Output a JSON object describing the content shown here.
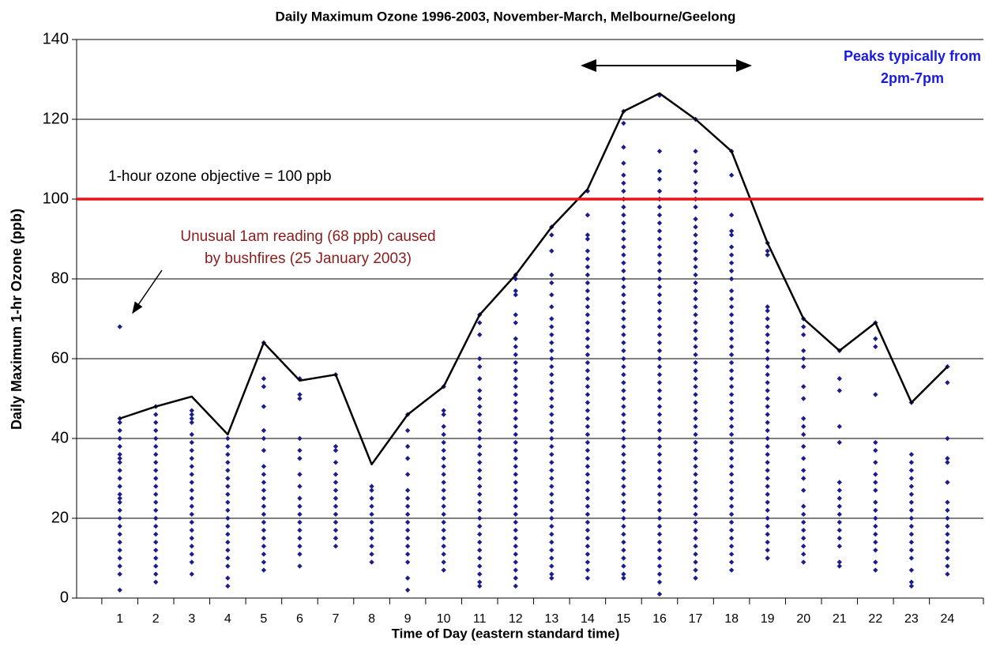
{
  "chart_data": {
    "type": "scatter",
    "title": "Daily Maximum Ozone 1996-2003, November-March, Melbourne/Geelong",
    "x_label": "Time of Day (eastern standard time)",
    "y_label": "Daily Maximum 1-hr Ozone (ppb)",
    "xlim": [
      -0.2,
      25
    ],
    "ylim": [
      0,
      140
    ],
    "xticks": [
      1,
      2,
      3,
      4,
      5,
      6,
      7,
      8,
      9,
      10,
      11,
      12,
      13,
      14,
      15,
      16,
      17,
      18,
      19,
      20,
      21,
      22,
      23,
      24
    ],
    "yticks": [
      0,
      20,
      40,
      60,
      80,
      100,
      120,
      140
    ],
    "grid": true,
    "point_color": "#1c1c8e",
    "points": [
      {
        "x": 1,
        "values": [
          68,
          45,
          44,
          42,
          40,
          38,
          36,
          35,
          34,
          32,
          30,
          28,
          26,
          25,
          24,
          22,
          20,
          18,
          16,
          14,
          12,
          10,
          8,
          6,
          2
        ]
      },
      {
        "x": 2,
        "values": [
          48,
          46,
          44,
          42,
          40,
          38,
          36,
          34,
          32,
          30,
          28,
          26,
          24,
          22,
          20,
          18,
          16,
          14,
          12,
          10,
          8,
          6,
          4
        ]
      },
      {
        "x": 3,
        "values": [
          47,
          46,
          45,
          44,
          41,
          39,
          37,
          35,
          33,
          31,
          29,
          27,
          25,
          23,
          21,
          19,
          17,
          15,
          13,
          11,
          9,
          6
        ]
      },
      {
        "x": 4,
        "values": [
          40,
          38,
          36,
          34,
          32,
          30,
          28,
          26,
          24,
          22,
          20,
          18,
          16,
          14,
          12,
          10,
          8,
          5,
          3
        ]
      },
      {
        "x": 5,
        "values": [
          64,
          55,
          53,
          48,
          42,
          40,
          37,
          33,
          31,
          29,
          27,
          25,
          23,
          21,
          19,
          17,
          15,
          13,
          11,
          9,
          7
        ]
      },
      {
        "x": 6,
        "values": [
          55,
          51,
          50,
          40,
          37,
          35,
          31,
          28,
          25,
          23,
          21,
          19,
          17,
          15,
          13,
          11,
          8
        ]
      },
      {
        "x": 7,
        "values": [
          56,
          38,
          37,
          34,
          31,
          29,
          27,
          25,
          23,
          21,
          19,
          17,
          15,
          13
        ]
      },
      {
        "x": 8,
        "values": [
          28,
          27,
          25,
          23,
          21,
          19,
          17,
          15,
          13,
          11,
          9
        ]
      },
      {
        "x": 9,
        "values": [
          46,
          42,
          38,
          35,
          31,
          27,
          25,
          23,
          21,
          19,
          17,
          15,
          13,
          11,
          9,
          5,
          2
        ]
      },
      {
        "x": 10,
        "values": [
          53,
          47,
          46,
          43,
          41,
          39,
          37,
          35,
          33,
          31,
          29,
          27,
          25,
          23,
          21,
          19,
          17,
          15,
          13,
          11,
          9,
          7
        ]
      },
      {
        "x": 11,
        "values": [
          71,
          69,
          66,
          60,
          58,
          55,
          52,
          50,
          48,
          46,
          44,
          42,
          40,
          38,
          36,
          34,
          32,
          30,
          28,
          26,
          24,
          22,
          20,
          18,
          16,
          14,
          12,
          10,
          8,
          6,
          4,
          3
        ]
      },
      {
        "x": 12,
        "values": [
          81,
          80,
          77,
          76,
          71,
          69,
          65,
          63,
          61,
          59,
          57,
          55,
          53,
          51,
          49,
          47,
          45,
          43,
          41,
          39,
          37,
          35,
          33,
          31,
          29,
          27,
          25,
          23,
          21,
          19,
          17,
          15,
          13,
          11,
          9,
          7,
          5,
          3
        ]
      },
      {
        "x": 13,
        "values": [
          93,
          91,
          87,
          81,
          79,
          76,
          73,
          70,
          68,
          66,
          64,
          62,
          60,
          58,
          56,
          54,
          52,
          50,
          48,
          46,
          44,
          42,
          40,
          38,
          36,
          34,
          32,
          30,
          28,
          26,
          24,
          22,
          20,
          18,
          16,
          14,
          12,
          10,
          8,
          6,
          5
        ]
      },
      {
        "x": 14,
        "values": [
          102,
          96,
          91,
          90,
          87,
          85,
          83,
          81,
          79,
          77,
          75,
          73,
          71,
          69,
          67,
          65,
          63,
          61,
          59,
          57,
          55,
          53,
          51,
          49,
          47,
          45,
          43,
          41,
          39,
          37,
          35,
          33,
          31,
          29,
          27,
          25,
          23,
          21,
          19,
          17,
          15,
          13,
          11,
          9,
          7,
          5
        ]
      },
      {
        "x": 15,
        "values": [
          122,
          119,
          113,
          109,
          106,
          104,
          102,
          100,
          98,
          96,
          94,
          92,
          90,
          88,
          86,
          84,
          82,
          80,
          78,
          76,
          74,
          72,
          70,
          68,
          66,
          64,
          62,
          60,
          58,
          56,
          54,
          52,
          50,
          48,
          46,
          44,
          42,
          40,
          38,
          36,
          34,
          32,
          30,
          28,
          26,
          24,
          22,
          20,
          18,
          16,
          14,
          12,
          10,
          8,
          6,
          5
        ]
      },
      {
        "x": 16,
        "values": [
          126,
          112,
          107,
          105,
          102,
          100,
          98,
          96,
          94,
          92,
          90,
          88,
          86,
          84,
          82,
          80,
          78,
          76,
          74,
          72,
          70,
          68,
          66,
          64,
          62,
          60,
          58,
          56,
          54,
          52,
          50,
          48,
          46,
          44,
          42,
          40,
          38,
          36,
          34,
          32,
          30,
          28,
          26,
          24,
          22,
          20,
          18,
          16,
          14,
          12,
          10,
          8,
          6,
          4,
          1
        ]
      },
      {
        "x": 17,
        "values": [
          120,
          112,
          109,
          107,
          104,
          102,
          100,
          98,
          95,
          93,
          91,
          89,
          87,
          85,
          83,
          81,
          79,
          77,
          75,
          73,
          71,
          69,
          67,
          65,
          63,
          61,
          59,
          57,
          55,
          53,
          51,
          49,
          47,
          45,
          43,
          41,
          39,
          37,
          35,
          33,
          31,
          29,
          27,
          25,
          23,
          21,
          19,
          17,
          15,
          13,
          11,
          9,
          7,
          5
        ]
      },
      {
        "x": 18,
        "values": [
          112,
          106,
          96,
          92,
          91,
          88,
          86,
          84,
          82,
          80,
          77,
          75,
          73,
          71,
          69,
          67,
          65,
          63,
          61,
          59,
          57,
          55,
          53,
          51,
          49,
          47,
          45,
          43,
          41,
          39,
          37,
          35,
          33,
          31,
          29,
          27,
          25,
          23,
          21,
          19,
          17,
          15,
          13,
          11,
          9,
          7
        ]
      },
      {
        "x": 19,
        "values": [
          89,
          87,
          86,
          73,
          72,
          70,
          68,
          66,
          64,
          62,
          60,
          58,
          56,
          54,
          52,
          50,
          48,
          46,
          44,
          42,
          40,
          38,
          36,
          34,
          32,
          30,
          28,
          26,
          24,
          22,
          20,
          18,
          16,
          14,
          12,
          10
        ]
      },
      {
        "x": 20,
        "values": [
          70,
          68,
          66,
          62,
          60,
          58,
          53,
          50,
          45,
          43,
          41,
          38,
          35,
          32,
          30,
          27,
          23,
          21,
          19,
          17,
          15,
          13,
          11,
          9
        ]
      },
      {
        "x": 21,
        "values": [
          62,
          55,
          52,
          43,
          39,
          29,
          27,
          25,
          23,
          21,
          19,
          17,
          15,
          13,
          9,
          8
        ]
      },
      {
        "x": 22,
        "values": [
          69,
          65,
          63,
          51,
          39,
          37,
          34,
          31,
          29,
          27,
          24,
          22,
          20,
          18,
          16,
          14,
          12,
          9,
          7
        ]
      },
      {
        "x": 23,
        "values": [
          49,
          36,
          34,
          32,
          30,
          28,
          26,
          24,
          22,
          20,
          18,
          16,
          14,
          12,
          10,
          7,
          4,
          3
        ]
      },
      {
        "x": 24,
        "values": [
          58,
          54,
          40,
          35,
          34,
          29,
          24,
          22,
          20,
          18,
          16,
          14,
          12,
          10,
          8,
          6
        ]
      }
    ],
    "max_line": {
      "color": "#000000",
      "values": [
        45,
        48,
        50.5,
        41,
        64,
        54.5,
        56,
        33.5,
        46,
        53,
        71,
        81,
        93,
        102.5,
        122,
        126.5,
        120,
        112,
        89,
        70,
        62,
        69,
        49,
        58
      ]
    },
    "reference_line": {
      "value": 100,
      "color": "#e8141a",
      "label": "1-hour ozone objective = 100 ppb"
    },
    "annotations": [
      {
        "lines": [
          "Unusual 1am reading (68 ppb) caused",
          "by bushfires (25 January 2003)"
        ],
        "color": "#8b1c1c"
      },
      {
        "lines": [
          "Peaks typically from",
          "2pm-7pm"
        ],
        "color": "#1a1ae6"
      }
    ]
  }
}
